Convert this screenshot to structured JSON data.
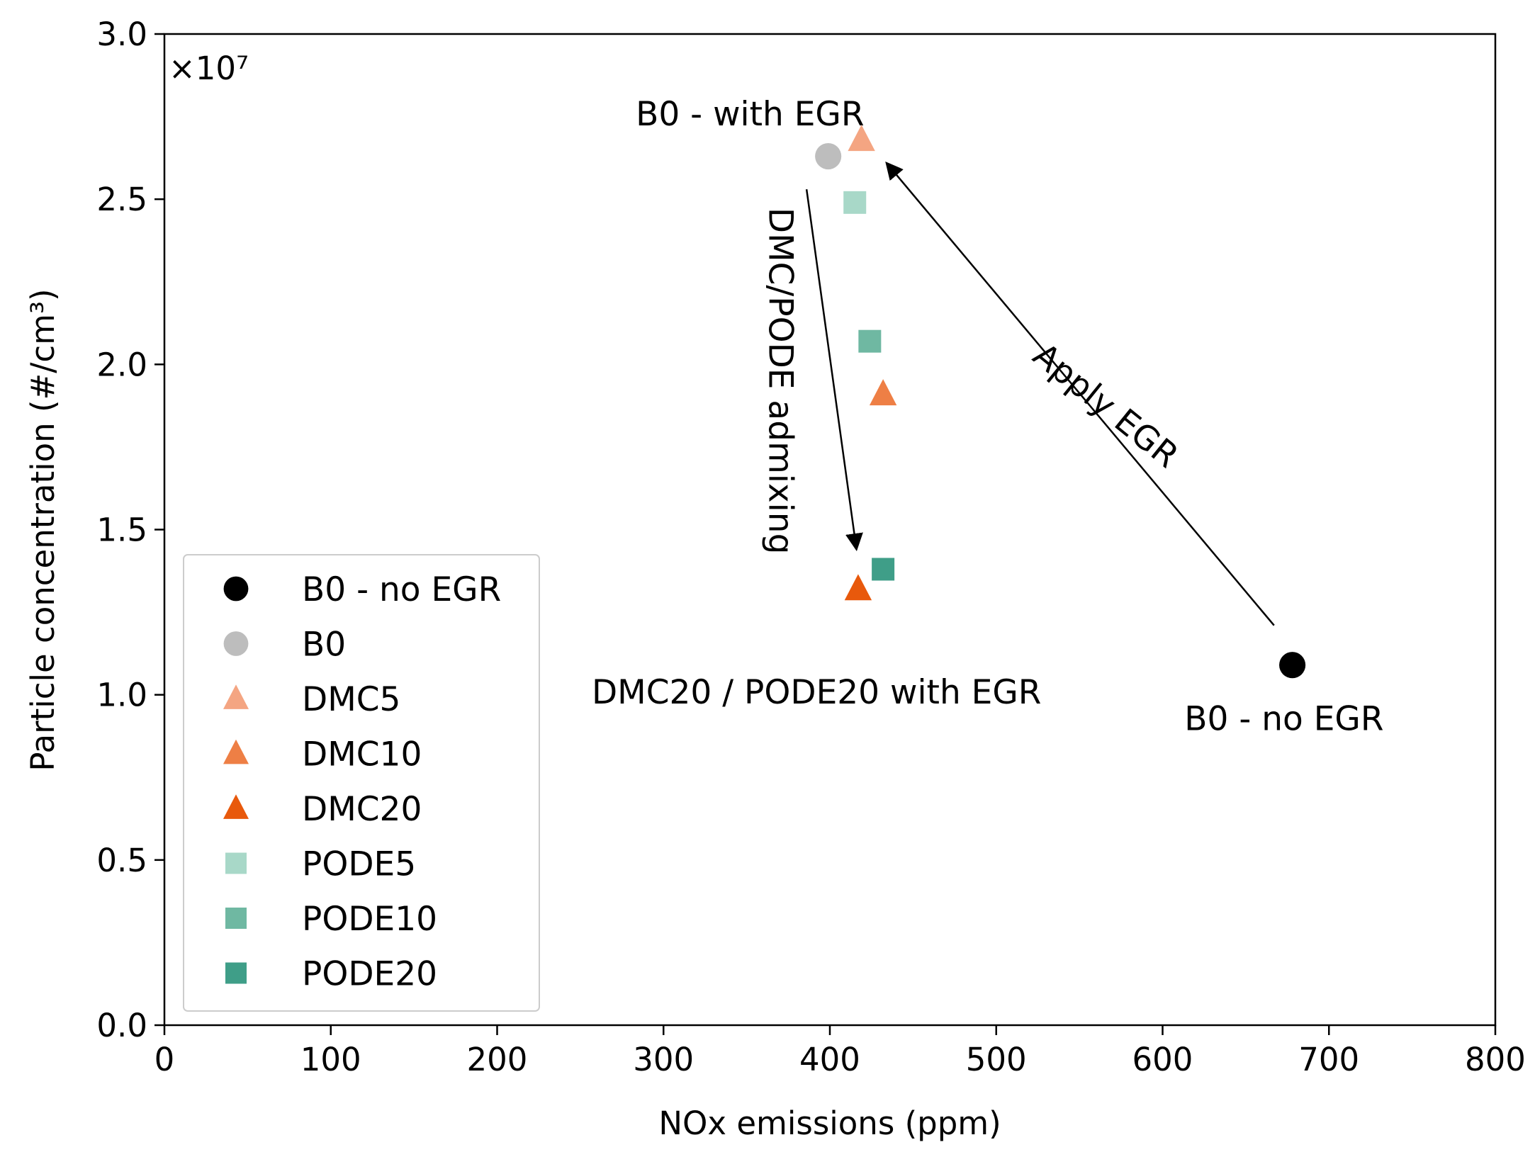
{
  "chart_data": {
    "type": "scatter",
    "title": "",
    "xlabel": "NOx emissions (ppm)",
    "ylabel": "Particle concentration (#/cm³)",
    "xlim": [
      0,
      800
    ],
    "ylim": [
      0,
      3.0
    ],
    "xticks": [
      0,
      100,
      200,
      300,
      400,
      500,
      600,
      700,
      800
    ],
    "xtick_labels": [
      "0",
      "100",
      "200",
      "300",
      "400",
      "500",
      "600",
      "700",
      "800"
    ],
    "yticks": [
      0,
      0.5,
      1.0,
      1.5,
      2.0,
      2.5,
      3.0
    ],
    "ytick_labels": [
      "0.0",
      "0.5",
      "1.0",
      "1.5",
      "2.0",
      "2.5",
      "3.0"
    ],
    "y_multiplier": "×10⁷",
    "grid": false,
    "legend_placement": "lower-left",
    "series": [
      {
        "name": "B0 - no EGR",
        "marker": "circle",
        "color": "#000000",
        "points": [
          {
            "x": 678,
            "y": 1.09
          }
        ]
      },
      {
        "name": "B0",
        "marker": "circle",
        "color": "#bdbdbd",
        "points": [
          {
            "x": 399,
            "y": 2.63
          }
        ]
      },
      {
        "name": "DMC5",
        "marker": "triangle",
        "color": "#f4a582",
        "points": [
          {
            "x": 419,
            "y": 2.68
          }
        ]
      },
      {
        "name": "DMC10",
        "marker": "triangle",
        "color": "#ee7f45",
        "points": [
          {
            "x": 432,
            "y": 1.91
          }
        ]
      },
      {
        "name": "DMC20",
        "marker": "triangle",
        "color": "#e8590c",
        "points": [
          {
            "x": 417,
            "y": 1.32
          }
        ]
      },
      {
        "name": "PODE5",
        "marker": "square",
        "color": "#a8d8c8",
        "points": [
          {
            "x": 415,
            "y": 2.49
          }
        ]
      },
      {
        "name": "PODE10",
        "marker": "square",
        "color": "#6fb8a2",
        "points": [
          {
            "x": 424,
            "y": 2.07
          }
        ]
      },
      {
        "name": "PODE20",
        "marker": "square",
        "color": "#3f9e88",
        "points": [
          {
            "x": 432,
            "y": 1.38
          }
        ]
      }
    ],
    "annotations": [
      {
        "text": "B0 - with EGR",
        "x": 352,
        "y": 2.75,
        "anchor": "middle",
        "rotate": 0
      },
      {
        "text": "B0 - no EGR",
        "x": 673,
        "y": 0.92,
        "anchor": "middle",
        "rotate": 0
      },
      {
        "text": "DMC20 / PODE20 with EGR",
        "x": 392,
        "y": 1.0,
        "anchor": "middle",
        "rotate": 0
      },
      {
        "text": "Apply EGR",
        "x": 565,
        "y": 1.87,
        "anchor": "middle",
        "rotate": 39
      },
      {
        "text": "DMC/PODE admixing",
        "x": 369,
        "y": 1.95,
        "anchor": "middle",
        "rotate": 90
      }
    ],
    "arrows": [
      {
        "from": {
          "x": 667,
          "y": 1.21
        },
        "to": {
          "x": 434,
          "y": 2.61
        }
      },
      {
        "from": {
          "x": 386,
          "y": 2.53
        },
        "to": {
          "x": 416,
          "y": 1.44
        }
      }
    ]
  }
}
